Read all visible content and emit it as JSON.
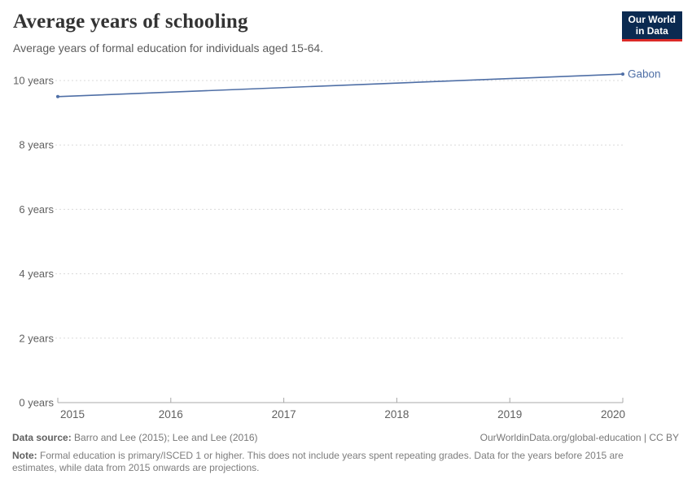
{
  "header": {
    "title": "Average years of schooling",
    "subtitle": "Average years of formal education for individuals aged 15-64.",
    "logo": {
      "line1": "Our World",
      "line2": "in Data"
    }
  },
  "chart_data": {
    "type": "line",
    "title": "Average years of schooling",
    "series": [
      {
        "name": "Gabon",
        "x": [
          2015,
          2020
        ],
        "values": [
          9.5,
          10.2
        ]
      }
    ],
    "xlabel": "",
    "ylabel": "years",
    "xlim": [
      2015,
      2020
    ],
    "ylim": [
      0,
      10.5
    ],
    "x_ticks": [
      2015,
      2016,
      2017,
      2018,
      2019,
      2020
    ],
    "x_tick_labels": [
      "2015",
      "2016",
      "2017",
      "2018",
      "2019",
      "2020"
    ],
    "y_ticks": [
      0,
      2,
      4,
      6,
      8,
      10
    ],
    "y_tick_labels": [
      "0 years",
      "2 years",
      "4 years",
      "6 years",
      "8 years",
      "10 years"
    ],
    "grid": "horizontal-dashed",
    "legend_position": "line-end-label",
    "line_color": "#4f6fa6",
    "axis_color": "#a8a8a8",
    "gridline_color": "#dadada",
    "tick_label_color": "#606060"
  },
  "footer": {
    "datasource_label": "Data source:",
    "datasource_value": "Barro and Lee (2015); Lee and Lee (2016)",
    "link": "OurWorldinData.org/global-education | CC BY",
    "note_label": "Note:",
    "note_value": "Formal education is primary/ISCED 1 or higher. This does not include years spent repeating grades. Data for the years before 2015 are estimates, while data from 2015 onwards are projections."
  }
}
